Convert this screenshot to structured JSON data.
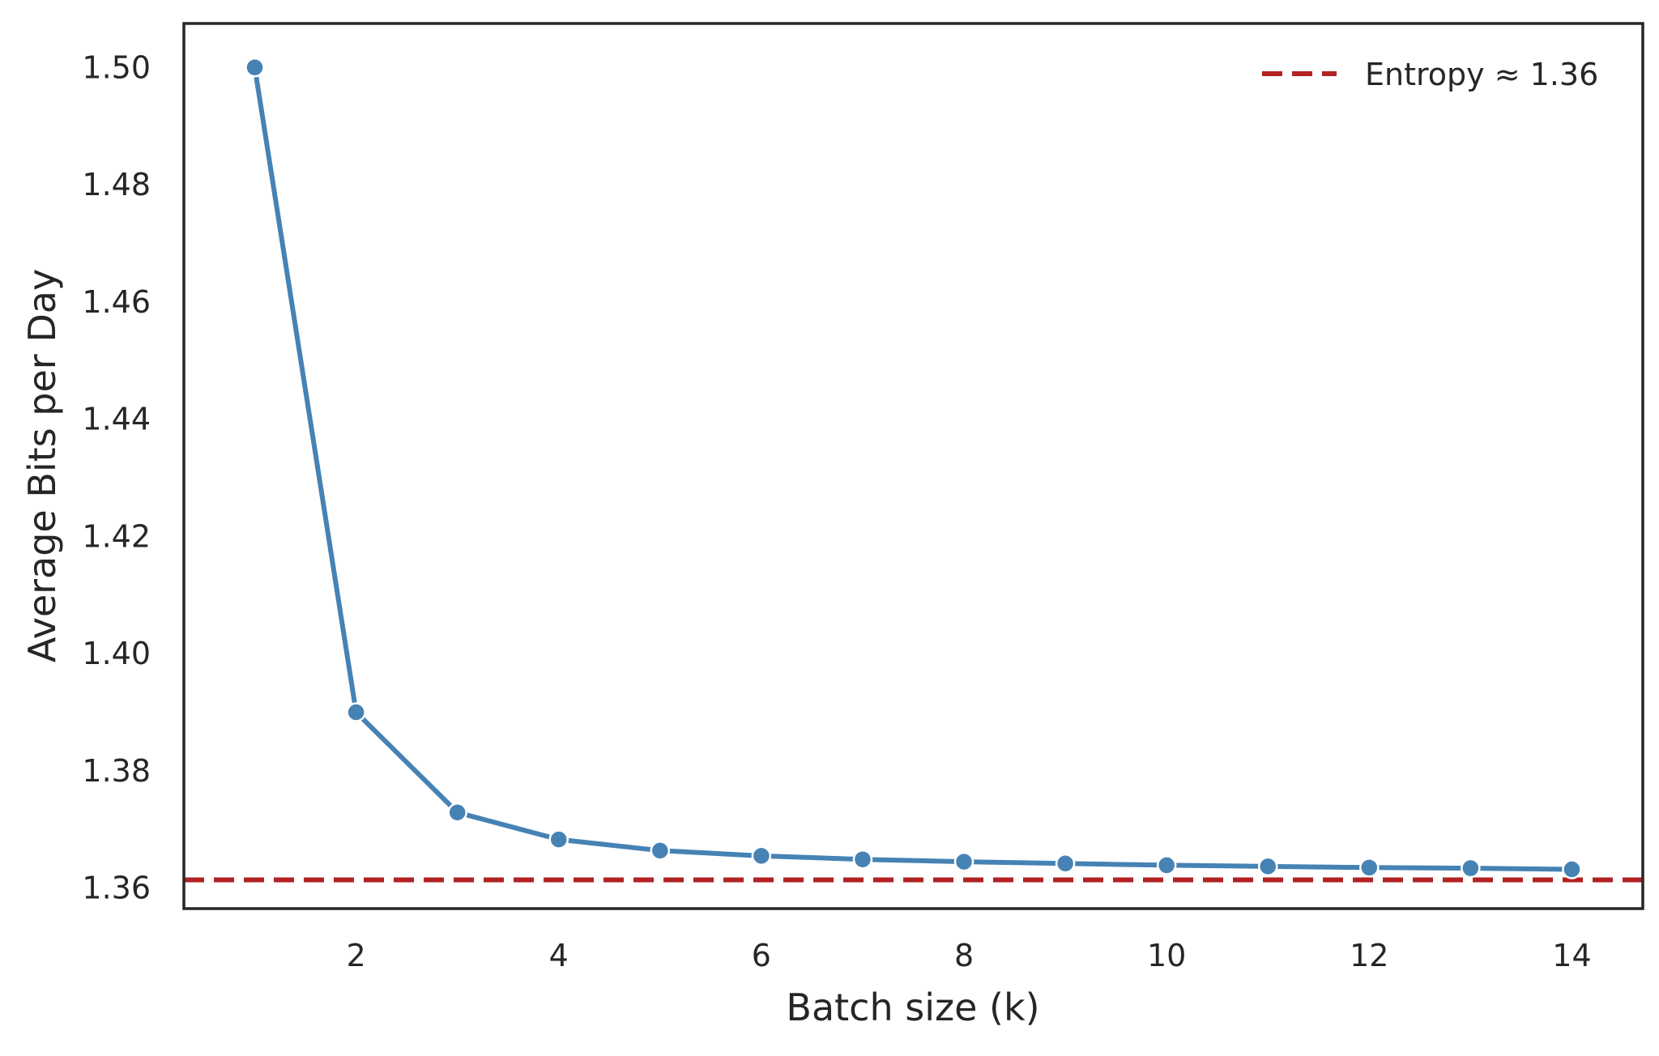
{
  "chart_data": {
    "type": "line",
    "title": "",
    "xlabel": "Batch size (k)",
    "ylabel": "Average Bits per Day",
    "xlim": [
      0.3,
      14.7
    ],
    "ylim": [
      1.3565,
      1.5075
    ],
    "xticks": [
      2,
      4,
      6,
      8,
      10,
      12,
      14
    ],
    "xtick_labels": [
      "2",
      "4",
      "6",
      "8",
      "10",
      "12",
      "14"
    ],
    "yticks": [
      1.36,
      1.38,
      1.4,
      1.42,
      1.44,
      1.46,
      1.48,
      1.5
    ],
    "ytick_labels": [
      "1.36",
      "1.38",
      "1.40",
      "1.42",
      "1.44",
      "1.46",
      "1.48",
      "1.50"
    ],
    "grid": false,
    "legend_position": "top-right",
    "series": [
      {
        "color": "#4682b4",
        "marker": "circle",
        "x": [
          1,
          2,
          3,
          4,
          5,
          6,
          7,
          8,
          9,
          10,
          11,
          12,
          13,
          14
        ],
        "y": [
          1.5,
          1.39,
          1.3729,
          1.3683,
          1.3664,
          1.3655,
          1.3649,
          1.3645,
          1.3642,
          1.3639,
          1.3637,
          1.3635,
          1.3634,
          1.3632
        ]
      }
    ],
    "reference_lines": [
      {
        "orientation": "horizontal",
        "y": 1.3614,
        "style": "dashed",
        "color": "#b22222",
        "label": "Entropy ≈ 1.36"
      }
    ]
  }
}
